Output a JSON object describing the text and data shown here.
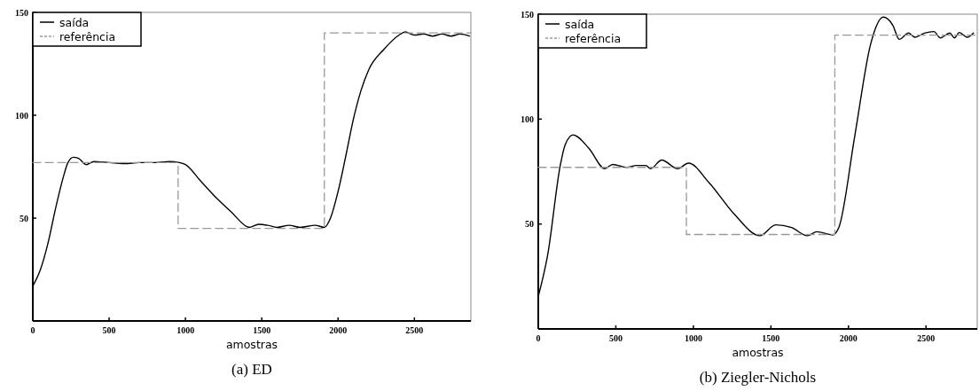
{
  "chart_data": [
    {
      "type": "line",
      "title": "(a) ED",
      "xlabel": "amostras",
      "xlim": [
        0,
        2870
      ],
      "xticks": [
        0,
        500,
        {
          "value": 1000,
          "label": "1000"
        },
        1500,
        2000,
        2500
      ],
      "ylim": [
        0,
        150
      ],
      "yticks": [
        {
          "value": 0,
          "label": null
        },
        50,
        100,
        150
      ],
      "grid": false,
      "legend": "top left",
      "series": [
        {
          "name": "saída",
          "color": "#000000",
          "line_style": "solid",
          "x": [
            0,
            50,
            100,
            150,
            200,
            230,
            266,
            300,
            350,
            400,
            500,
            600,
            700,
            800,
            900,
            960,
            1000,
            1100,
            1200,
            1300,
            1400,
            1420,
            1480,
            1540,
            1600,
            1680,
            1750,
            1850,
            1910,
            1950,
            2000,
            2050,
            2100,
            2150,
            2200,
            2300,
            2400,
            2440,
            2500,
            2560,
            2620,
            2680,
            2740,
            2800,
            2860
          ],
          "values": [
            17,
            25,
            38,
            55,
            70,
            77,
            79.6,
            79,
            76,
            77.5,
            77,
            76.5,
            77,
            77,
            77.5,
            77,
            76,
            68,
            60,
            53,
            46,
            45.5,
            47,
            46.5,
            45.5,
            46.5,
            45.5,
            46.5,
            45.5,
            50,
            63,
            80,
            98,
            112,
            122,
            132,
            139,
            140.5,
            139,
            139.5,
            138.5,
            139.5,
            138.5,
            139.5,
            138.5
          ]
        },
        {
          "name": "referência",
          "color": "#999999",
          "line_style": "dashed",
          "x": [
            0,
            952,
            952,
            1910,
            1910,
            2870
          ],
          "values": [
            77,
            77,
            45,
            45,
            140,
            140
          ]
        }
      ]
    },
    {
      "type": "line",
      "title": "(b) Ziegler-Nichols",
      "xlabel": "amostras",
      "xlim": [
        0,
        2830
      ],
      "xticks": [
        0,
        500,
        {
          "value": 1000,
          "label": "1000"
        },
        1500,
        2000,
        2500
      ],
      "ylim": [
        0,
        150
      ],
      "yticks": [
        {
          "value": 0,
          "label": null
        },
        50,
        100,
        150
      ],
      "grid": false,
      "legend": "top left",
      "series": [
        {
          "name": "saída",
          "color": "#000000",
          "line_style": "solid",
          "x": [
            0,
            60,
            143,
            173,
            224,
            327,
            429,
            480,
            571,
            633,
            694,
            724,
            796,
            898,
            969,
            1102,
            1265,
            1429,
            1531,
            1633,
            1735,
            1796,
            1898,
            1939,
            2041,
            2143,
            2224,
            2286,
            2327,
            2388,
            2429,
            2490,
            2551,
            2592,
            2653,
            2684,
            2714,
            2765,
            2806
          ],
          "values": [
            15.5,
            35,
            78.4,
            87.7,
            92.5,
            86,
            76.4,
            78.4,
            77,
            77.9,
            77.9,
            76.4,
            80.5,
            76.4,
            79,
            69.6,
            54.6,
            44.4,
            49.6,
            48.3,
            44.4,
            46.3,
            44.8,
            48.6,
            92.2,
            135.8,
            148.6,
            144.7,
            138,
            141,
            139,
            141,
            141.7,
            138.7,
            141,
            138.7,
            141.3,
            139,
            141
          ]
        },
        {
          "name": "referência",
          "color": "#999999",
          "line_style": "dashed",
          "x": [
            0,
            955,
            955,
            1912,
            1912,
            2830
          ],
          "values": [
            77,
            77,
            45,
            45,
            140,
            140
          ]
        }
      ]
    }
  ]
}
